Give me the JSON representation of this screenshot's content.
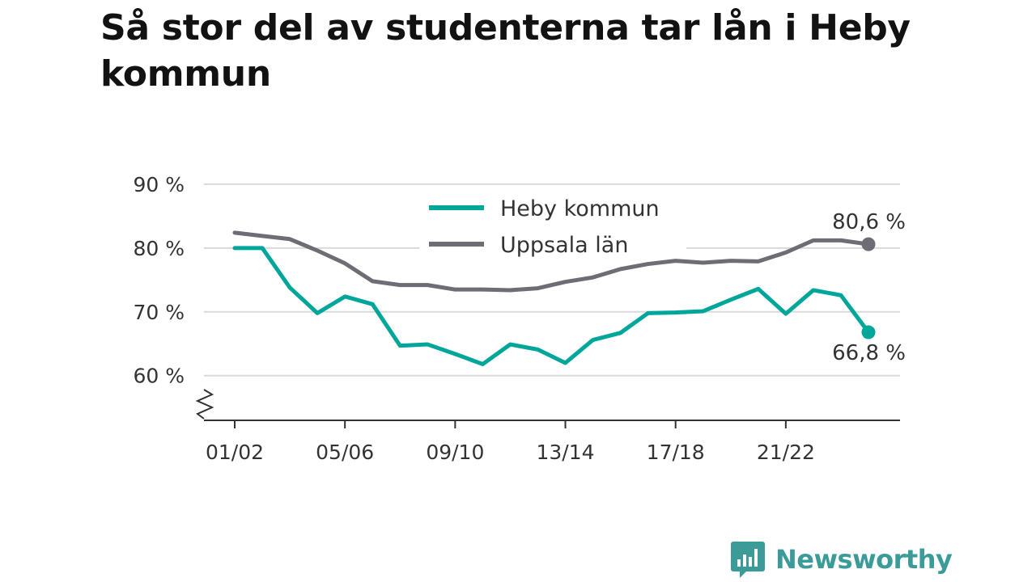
{
  "chart_data": {
    "type": "line",
    "title": "Så stor del av studenterna tar lån i Heby kommun",
    "x": [
      "01/02",
      "02/03",
      "03/04",
      "04/05",
      "05/06",
      "06/07",
      "07/08",
      "08/09",
      "09/10",
      "10/11",
      "11/12",
      "12/13",
      "13/14",
      "14/15",
      "15/16",
      "16/17",
      "17/18",
      "18/19",
      "19/20",
      "20/21",
      "21/22",
      "22/23",
      "23/24",
      "24/25"
    ],
    "x_tick_labels": [
      "01/02",
      "05/06",
      "09/10",
      "13/14",
      "17/18",
      "21/22"
    ],
    "y_ticks": [
      60,
      70,
      80,
      90
    ],
    "y_tick_labels": [
      "60 %",
      "70 %",
      "80 %",
      "90 %"
    ],
    "ylim": [
      53,
      91
    ],
    "grid": true,
    "legend_position": "top-center",
    "series": [
      {
        "name": "Heby kommun",
        "color": "#00a69a",
        "values": [
          80.0,
          80.0,
          73.8,
          69.8,
          72.4,
          71.2,
          64.7,
          64.9,
          63.4,
          61.8,
          64.9,
          64.1,
          62.0,
          65.6,
          66.7,
          69.8,
          69.9,
          70.1,
          71.9,
          73.6,
          69.7,
          73.4,
          72.6,
          66.8
        ],
        "end_label": "66,8 %"
      },
      {
        "name": "Uppsala län",
        "color": "#6e6c74",
        "values": [
          82.4,
          81.9,
          81.4,
          79.6,
          77.6,
          74.8,
          74.2,
          74.2,
          73.5,
          73.5,
          73.4,
          73.7,
          74.7,
          75.4,
          76.7,
          77.5,
          78.0,
          77.7,
          78.0,
          77.9,
          79.3,
          81.2,
          81.2,
          80.6
        ],
        "end_label": "80,6 %"
      }
    ]
  },
  "logo": {
    "name": "chart-bars-icon",
    "text": "Newsworthy",
    "color": "#3b9b99"
  }
}
